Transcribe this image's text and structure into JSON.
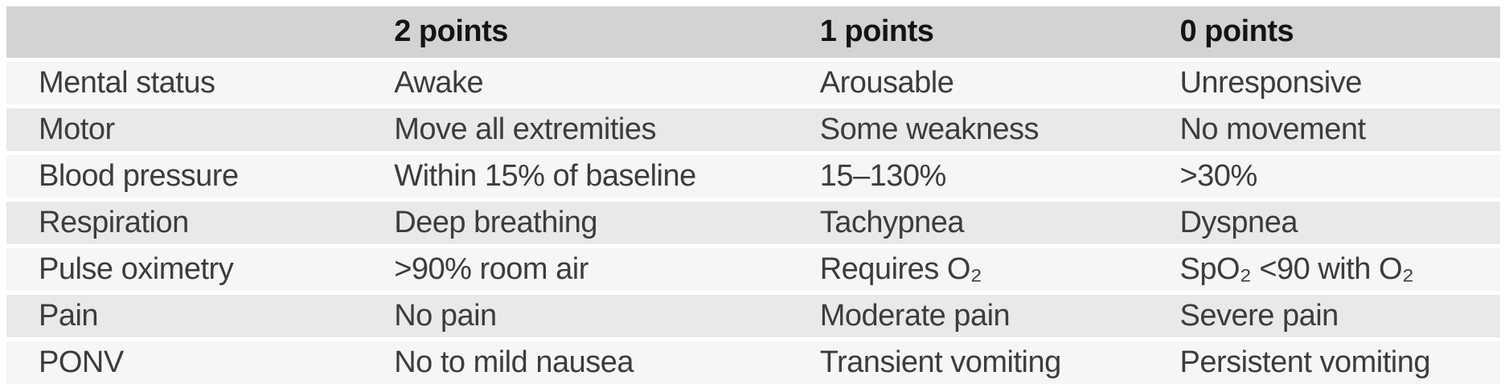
{
  "table": {
    "title_semantic": "Post-anesthesia recovery scoring table",
    "header": {
      "criterion": "",
      "p2": "2 points",
      "p1": "1 points",
      "p0": "0 points"
    },
    "rows": [
      {
        "criterion": "Mental status",
        "p2": "Awake",
        "p1": "Arousable",
        "p0": "Unresponsive"
      },
      {
        "criterion": "Motor",
        "p2": "Move all extremities",
        "p1": "Some weakness",
        "p0": "No movement"
      },
      {
        "criterion": "Blood pressure",
        "p2": "Within 15% of baseline",
        "p1": "15–130%",
        "p0": ">30%"
      },
      {
        "criterion": "Respiration",
        "p2": "Deep breathing",
        "p1": "Tachypnea",
        "p0": "Dyspnea"
      },
      {
        "criterion": "Pulse oximetry",
        "p2": ">90% room air",
        "p1": "Requires O₂",
        "p0": "SpO₂ <90 with O₂"
      },
      {
        "criterion": "Pain",
        "p2": "No pain",
        "p1": "Moderate pain",
        "p0": "Severe pain"
      },
      {
        "criterion": "PONV",
        "p2": "No to mild nausea",
        "p1": "Transient vomiting",
        "p0": "Persistent vomiting"
      }
    ],
    "colors": {
      "header_bg": "#d3d3d5",
      "row_light_bg": "#f6f6f6",
      "row_dark_bg": "#e9e9ea",
      "header_text": "#141414",
      "body_text": "#3c3c3c",
      "page_bg": "#ffffff"
    }
  }
}
